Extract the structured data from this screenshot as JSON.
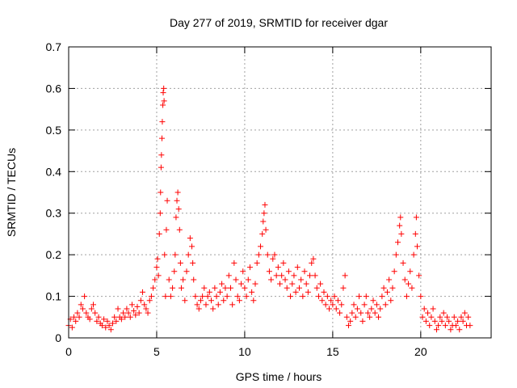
{
  "chart_data": {
    "type": "scatter",
    "title": "Day 277 of 2019, SRMTID for receiver dgar",
    "xlabel": "GPS time / hours",
    "ylabel": "SRMTID / TECUs",
    "xlim": [
      0,
      24
    ],
    "ylim": [
      0,
      0.7
    ],
    "xticks": [
      "0",
      "5",
      "10",
      "15",
      "20"
    ],
    "yticks": [
      "0",
      "0.1",
      "0.2",
      "0.3",
      "0.4",
      "0.5",
      "0.6",
      "0.7"
    ],
    "grid": true,
    "marker": "+",
    "marker_color": "#ff0000",
    "series": [
      {
        "name": "SRMTID",
        "points": [
          [
            0.0,
            0.03
          ],
          [
            0.1,
            0.045
          ],
          [
            0.2,
            0.025
          ],
          [
            0.3,
            0.05
          ],
          [
            0.4,
            0.04
          ],
          [
            0.5,
            0.06
          ],
          [
            0.6,
            0.05
          ],
          [
            0.7,
            0.08
          ],
          [
            0.8,
            0.07
          ],
          [
            0.9,
            0.1
          ],
          [
            1.0,
            0.06
          ],
          [
            1.1,
            0.05
          ],
          [
            1.2,
            0.045
          ],
          [
            1.3,
            0.07
          ],
          [
            1.4,
            0.08
          ],
          [
            1.5,
            0.06
          ],
          [
            1.6,
            0.04
          ],
          [
            1.7,
            0.05
          ],
          [
            1.8,
            0.035
          ],
          [
            1.9,
            0.03
          ],
          [
            2.0,
            0.045
          ],
          [
            2.1,
            0.025
          ],
          [
            2.2,
            0.04
          ],
          [
            2.3,
            0.03
          ],
          [
            2.4,
            0.02
          ],
          [
            2.5,
            0.035
          ],
          [
            2.6,
            0.05
          ],
          [
            2.7,
            0.04
          ],
          [
            2.8,
            0.07
          ],
          [
            2.9,
            0.05
          ],
          [
            3.0,
            0.045
          ],
          [
            3.1,
            0.06
          ],
          [
            3.2,
            0.05
          ],
          [
            3.3,
            0.07
          ],
          [
            3.4,
            0.06
          ],
          [
            3.5,
            0.05
          ],
          [
            3.6,
            0.08
          ],
          [
            3.7,
            0.065
          ],
          [
            3.8,
            0.055
          ],
          [
            3.9,
            0.075
          ],
          [
            4.0,
            0.06
          ],
          [
            4.1,
            0.09
          ],
          [
            4.2,
            0.11
          ],
          [
            4.3,
            0.08
          ],
          [
            4.4,
            0.07
          ],
          [
            4.5,
            0.06
          ],
          [
            4.6,
            0.09
          ],
          [
            4.7,
            0.1
          ],
          [
            4.8,
            0.12
          ],
          [
            4.9,
            0.14
          ],
          [
            5.0,
            0.17
          ],
          [
            5.05,
            0.19
          ],
          [
            5.1,
            0.15
          ],
          [
            5.15,
            0.25
          ],
          [
            5.2,
            0.3
          ],
          [
            5.22,
            0.35
          ],
          [
            5.25,
            0.41
          ],
          [
            5.27,
            0.44
          ],
          [
            5.3,
            0.48
          ],
          [
            5.32,
            0.52
          ],
          [
            5.35,
            0.56
          ],
          [
            5.37,
            0.59
          ],
          [
            5.4,
            0.6
          ],
          [
            5.42,
            0.57
          ],
          [
            5.45,
            0.2
          ],
          [
            5.5,
            0.1
          ],
          [
            5.55,
            0.26
          ],
          [
            5.6,
            0.33
          ],
          [
            5.7,
            0.14
          ],
          [
            5.8,
            0.1
          ],
          [
            5.9,
            0.12
          ],
          [
            6.0,
            0.16
          ],
          [
            6.05,
            0.2
          ],
          [
            6.1,
            0.29
          ],
          [
            6.15,
            0.33
          ],
          [
            6.2,
            0.35
          ],
          [
            6.25,
            0.31
          ],
          [
            6.3,
            0.26
          ],
          [
            6.35,
            0.18
          ],
          [
            6.4,
            0.12
          ],
          [
            6.5,
            0.14
          ],
          [
            6.6,
            0.09
          ],
          [
            6.7,
            0.16
          ],
          [
            6.8,
            0.2
          ],
          [
            6.9,
            0.24
          ],
          [
            7.0,
            0.22
          ],
          [
            7.05,
            0.18
          ],
          [
            7.1,
            0.14
          ],
          [
            7.2,
            0.1
          ],
          [
            7.3,
            0.08
          ],
          [
            7.4,
            0.07
          ],
          [
            7.5,
            0.09
          ],
          [
            7.6,
            0.1
          ],
          [
            7.7,
            0.12
          ],
          [
            7.8,
            0.08
          ],
          [
            7.9,
            0.1
          ],
          [
            8.0,
            0.11
          ],
          [
            8.1,
            0.09
          ],
          [
            8.2,
            0.07
          ],
          [
            8.3,
            0.12
          ],
          [
            8.4,
            0.1
          ],
          [
            8.5,
            0.08
          ],
          [
            8.6,
            0.11
          ],
          [
            8.7,
            0.13
          ],
          [
            8.8,
            0.09
          ],
          [
            8.9,
            0.12
          ],
          [
            9.0,
            0.1
          ],
          [
            9.1,
            0.15
          ],
          [
            9.2,
            0.12
          ],
          [
            9.3,
            0.08
          ],
          [
            9.4,
            0.18
          ],
          [
            9.5,
            0.14
          ],
          [
            9.6,
            0.1
          ],
          [
            9.7,
            0.09
          ],
          [
            9.8,
            0.13
          ],
          [
            9.9,
            0.16
          ],
          [
            10.0,
            0.12
          ],
          [
            10.1,
            0.1
          ],
          [
            10.2,
            0.14
          ],
          [
            10.3,
            0.17
          ],
          [
            10.4,
            0.11
          ],
          [
            10.5,
            0.09
          ],
          [
            10.6,
            0.13
          ],
          [
            10.7,
            0.18
          ],
          [
            10.8,
            0.2
          ],
          [
            10.9,
            0.22
          ],
          [
            11.0,
            0.25
          ],
          [
            11.05,
            0.28
          ],
          [
            11.1,
            0.3
          ],
          [
            11.15,
            0.32
          ],
          [
            11.2,
            0.26
          ],
          [
            11.3,
            0.2
          ],
          [
            11.4,
            0.16
          ],
          [
            11.5,
            0.14
          ],
          [
            11.6,
            0.19
          ],
          [
            11.7,
            0.2
          ],
          [
            11.8,
            0.15
          ],
          [
            11.9,
            0.17
          ],
          [
            12.0,
            0.13
          ],
          [
            12.1,
            0.15
          ],
          [
            12.2,
            0.18
          ],
          [
            12.3,
            0.14
          ],
          [
            12.4,
            0.12
          ],
          [
            12.5,
            0.16
          ],
          [
            12.6,
            0.1
          ],
          [
            12.7,
            0.13
          ],
          [
            12.8,
            0.15
          ],
          [
            12.9,
            0.11
          ],
          [
            13.0,
            0.17
          ],
          [
            13.1,
            0.12
          ],
          [
            13.2,
            0.14
          ],
          [
            13.3,
            0.1
          ],
          [
            13.4,
            0.16
          ],
          [
            13.5,
            0.13
          ],
          [
            13.6,
            0.11
          ],
          [
            13.7,
            0.15
          ],
          [
            13.8,
            0.18
          ],
          [
            13.9,
            0.19
          ],
          [
            14.0,
            0.15
          ],
          [
            14.1,
            0.12
          ],
          [
            14.2,
            0.1
          ],
          [
            14.3,
            0.13
          ],
          [
            14.4,
            0.09
          ],
          [
            14.5,
            0.11
          ],
          [
            14.6,
            0.08
          ],
          [
            14.7,
            0.1
          ],
          [
            14.8,
            0.07
          ],
          [
            14.9,
            0.09
          ],
          [
            15.0,
            0.08
          ],
          [
            15.1,
            0.1
          ],
          [
            15.2,
            0.07
          ],
          [
            15.3,
            0.09
          ],
          [
            15.4,
            0.06
          ],
          [
            15.5,
            0.08
          ],
          [
            15.6,
            0.12
          ],
          [
            15.7,
            0.15
          ],
          [
            15.8,
            0.05
          ],
          [
            15.9,
            0.03
          ],
          [
            16.0,
            0.04
          ],
          [
            16.1,
            0.06
          ],
          [
            16.2,
            0.08
          ],
          [
            16.3,
            0.05
          ],
          [
            16.4,
            0.07
          ],
          [
            16.5,
            0.1
          ],
          [
            16.6,
            0.06
          ],
          [
            16.7,
            0.04
          ],
          [
            16.8,
            0.08
          ],
          [
            16.9,
            0.1
          ],
          [
            17.0,
            0.06
          ],
          [
            17.1,
            0.05
          ],
          [
            17.2,
            0.07
          ],
          [
            17.3,
            0.09
          ],
          [
            17.4,
            0.06
          ],
          [
            17.5,
            0.08
          ],
          [
            17.6,
            0.05
          ],
          [
            17.7,
            0.07
          ],
          [
            17.8,
            0.1
          ],
          [
            17.9,
            0.12
          ],
          [
            18.0,
            0.08
          ],
          [
            18.1,
            0.11
          ],
          [
            18.2,
            0.14
          ],
          [
            18.3,
            0.09
          ],
          [
            18.4,
            0.12
          ],
          [
            18.5,
            0.16
          ],
          [
            18.6,
            0.2
          ],
          [
            18.7,
            0.23
          ],
          [
            18.8,
            0.27
          ],
          [
            18.85,
            0.29
          ],
          [
            18.9,
            0.25
          ],
          [
            19.0,
            0.18
          ],
          [
            19.1,
            0.14
          ],
          [
            19.2,
            0.1
          ],
          [
            19.3,
            0.13
          ],
          [
            19.4,
            0.16
          ],
          [
            19.5,
            0.12
          ],
          [
            19.6,
            0.2
          ],
          [
            19.7,
            0.25
          ],
          [
            19.75,
            0.29
          ],
          [
            19.8,
            0.22
          ],
          [
            19.9,
            0.15
          ],
          [
            20.0,
            0.1
          ],
          [
            20.1,
            0.05
          ],
          [
            20.2,
            0.07
          ],
          [
            20.3,
            0.04
          ],
          [
            20.4,
            0.06
          ],
          [
            20.5,
            0.03
          ],
          [
            20.6,
            0.05
          ],
          [
            20.7,
            0.07
          ],
          [
            20.8,
            0.04
          ],
          [
            20.9,
            0.02
          ],
          [
            21.0,
            0.03
          ],
          [
            21.1,
            0.05
          ],
          [
            21.2,
            0.04
          ],
          [
            21.3,
            0.06
          ],
          [
            21.4,
            0.03
          ],
          [
            21.5,
            0.05
          ],
          [
            21.6,
            0.04
          ],
          [
            21.7,
            0.02
          ],
          [
            21.8,
            0.03
          ],
          [
            21.9,
            0.05
          ],
          [
            22.0,
            0.03
          ],
          [
            22.1,
            0.04
          ],
          [
            22.2,
            0.02
          ],
          [
            22.3,
            0.05
          ],
          [
            22.4,
            0.04
          ],
          [
            22.5,
            0.06
          ],
          [
            22.6,
            0.03
          ],
          [
            22.7,
            0.05
          ],
          [
            22.8,
            0.03
          ]
        ]
      }
    ]
  }
}
